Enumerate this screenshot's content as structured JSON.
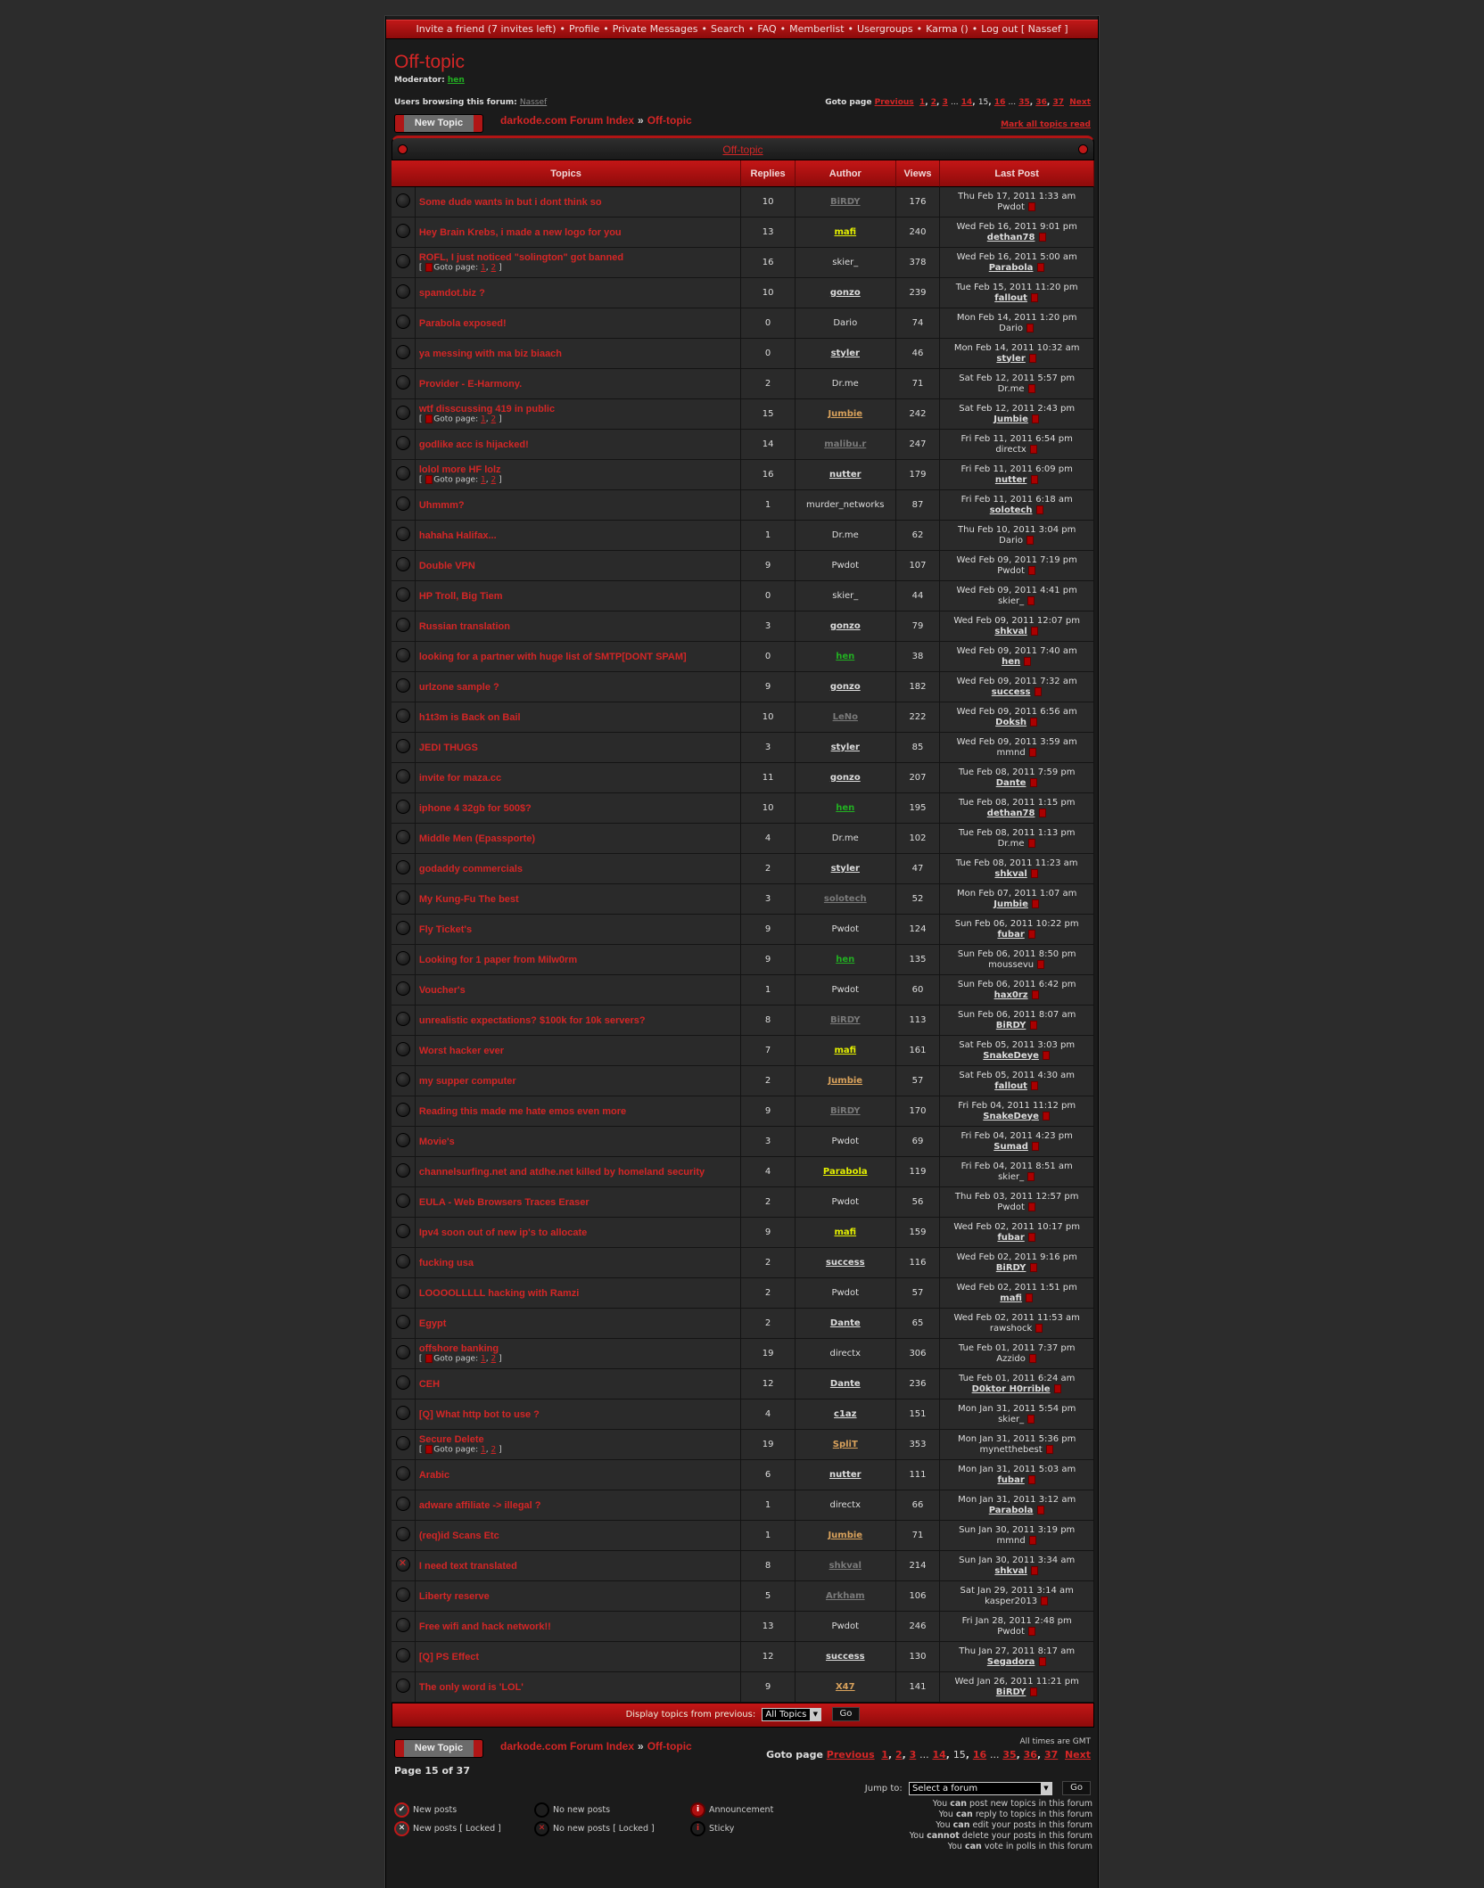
{
  "nav": {
    "items": [
      "Invite a friend (7 invites left)",
      "Profile",
      "Private Messages",
      "Search",
      "FAQ",
      "Memberlist",
      "Usergroups",
      "Karma ()",
      "Log out [ Nassef ]"
    ]
  },
  "forum_title": "Off-topic",
  "moderator": {
    "label": "Moderator:",
    "name": "hen"
  },
  "browsing": {
    "label": "Users browsing this forum:",
    "user": "Nassef"
  },
  "pagination": {
    "label": "Goto page",
    "previous": "Previous",
    "next": "Next",
    "pages": [
      "1",
      "2",
      "3",
      "...",
      "14",
      "15",
      "16",
      "...",
      "35",
      "36",
      "37"
    ],
    "current": "15"
  },
  "new_topic_label": "New Topic",
  "breadcrumb": {
    "index": "darkode.com Forum Index",
    "separator": "»",
    "current": "Off-topic"
  },
  "mark_read": "Mark all topics read",
  "category": "Off-topic",
  "columns": [
    "Topics",
    "Replies",
    "Author",
    "Views",
    "Last Post"
  ],
  "goto_pages": {
    "label": "Goto page:",
    "pages": [
      "1",
      "2"
    ]
  },
  "topics": [
    {
      "title": "Some dude wants in but i dont think so",
      "replies": 10,
      "author": "BiRDY",
      "author_style": "gray",
      "views": 176,
      "last_date": "Thu Feb 17, 2011 1:33 am",
      "last_user": "Pwdot",
      "last_style": "plain"
    },
    {
      "title": "Hey Brain Krebs, i made a new logo for you",
      "replies": 13,
      "author": "mafi",
      "author_style": "yellow",
      "views": 240,
      "last_date": "Wed Feb 16, 2011 9:01 pm",
      "last_user": "dethan78",
      "last_style": "link"
    },
    {
      "title": "ROFL, I just noticed \"solington\" got banned",
      "pages": true,
      "replies": 16,
      "author": "skier_",
      "author_style": "plain",
      "views": 378,
      "last_date": "Wed Feb 16, 2011 5:00 am",
      "last_user": "Parabola",
      "last_style": "link"
    },
    {
      "title": "spamdot.biz ?",
      "replies": 10,
      "author": "gonzo",
      "author_style": "link",
      "views": 239,
      "last_date": "Tue Feb 15, 2011 11:20 pm",
      "last_user": "fallout",
      "last_style": "link"
    },
    {
      "title": "Parabola exposed!",
      "replies": 0,
      "author": "Dario",
      "author_style": "plain",
      "views": 74,
      "last_date": "Mon Feb 14, 2011 1:20 pm",
      "last_user": "Dario",
      "last_style": "plain"
    },
    {
      "title": "ya messing with ma biz biaach",
      "replies": 0,
      "author": "styler",
      "author_style": "link",
      "views": 46,
      "last_date": "Mon Feb 14, 2011 10:32 am",
      "last_user": "styler",
      "last_style": "link"
    },
    {
      "title": "Provider - E-Harmony.",
      "replies": 2,
      "author": "Dr.me",
      "author_style": "plain",
      "views": 71,
      "last_date": "Sat Feb 12, 2011 5:57 pm",
      "last_user": "Dr.me",
      "last_style": "plain"
    },
    {
      "title": "wtf disscussing 419 in public",
      "pages": true,
      "replies": 15,
      "author": "Jumbie",
      "author_style": "orange",
      "views": 242,
      "last_date": "Sat Feb 12, 2011 2:43 pm",
      "last_user": "Jumbie",
      "last_style": "link"
    },
    {
      "title": "godlike acc is hijacked!",
      "replies": 14,
      "author": "malibu.r",
      "author_style": "gray",
      "views": 247,
      "last_date": "Fri Feb 11, 2011 6:54 pm",
      "last_user": "directx",
      "last_style": "plain"
    },
    {
      "title": "lolol more HF lolz",
      "pages": true,
      "replies": 16,
      "author": "nutter",
      "author_style": "link",
      "views": 179,
      "last_date": "Fri Feb 11, 2011 6:09 pm",
      "last_user": "nutter",
      "last_style": "link"
    },
    {
      "title": "Uhmmm?",
      "replies": 1,
      "author": "murder_networks",
      "author_style": "plain",
      "views": 87,
      "last_date": "Fri Feb 11, 2011 6:18 am",
      "last_user": "solotech",
      "last_style": "link"
    },
    {
      "title": "hahaha Halifax...",
      "replies": 1,
      "author": "Dr.me",
      "author_style": "plain",
      "views": 62,
      "last_date": "Thu Feb 10, 2011 3:04 pm",
      "last_user": "Dario",
      "last_style": "plain"
    },
    {
      "title": "Double VPN",
      "replies": 9,
      "author": "Pwdot",
      "author_style": "plain",
      "views": 107,
      "last_date": "Wed Feb 09, 2011 7:19 pm",
      "last_user": "Pwdot",
      "last_style": "plain"
    },
    {
      "title": "HP Troll, Big Tiem",
      "replies": 0,
      "author": "skier_",
      "author_style": "plain",
      "views": 44,
      "last_date": "Wed Feb 09, 2011 4:41 pm",
      "last_user": "skier_",
      "last_style": "plain"
    },
    {
      "title": "Russian translation",
      "replies": 3,
      "author": "gonzo",
      "author_style": "link",
      "views": 79,
      "last_date": "Wed Feb 09, 2011 12:07 pm",
      "last_user": "shkval",
      "last_style": "link"
    },
    {
      "title": "looking for a partner with huge list of SMTP[DONT SPAM]",
      "replies": 0,
      "author": "hen",
      "author_style": "green",
      "views": 38,
      "last_date": "Wed Feb 09, 2011 7:40 am",
      "last_user": "hen",
      "last_style": "link"
    },
    {
      "title": "urlzone sample ?",
      "replies": 9,
      "author": "gonzo",
      "author_style": "link",
      "views": 182,
      "last_date": "Wed Feb 09, 2011 7:32 am",
      "last_user": "success",
      "last_style": "link"
    },
    {
      "title": "h1t3m is Back on Bail",
      "replies": 10,
      "author": "LeNo",
      "author_style": "gray",
      "views": 222,
      "last_date": "Wed Feb 09, 2011 6:56 am",
      "last_user": "Doksh",
      "last_style": "link"
    },
    {
      "title": "JEDI THUGS",
      "replies": 3,
      "author": "styler",
      "author_style": "link",
      "views": 85,
      "last_date": "Wed Feb 09, 2011 3:59 am",
      "last_user": "mmnd",
      "last_style": "plain"
    },
    {
      "title": "invite for maza.cc",
      "replies": 11,
      "author": "gonzo",
      "author_style": "link",
      "views": 207,
      "last_date": "Tue Feb 08, 2011 7:59 pm",
      "last_user": "Dante",
      "last_style": "link"
    },
    {
      "title": "iphone 4 32gb for 500$?",
      "replies": 10,
      "author": "hen",
      "author_style": "green",
      "views": 195,
      "last_date": "Tue Feb 08, 2011 1:15 pm",
      "last_user": "dethan78",
      "last_style": "link"
    },
    {
      "title": "Middle Men (Epassporte)",
      "replies": 4,
      "author": "Dr.me",
      "author_style": "plain",
      "views": 102,
      "last_date": "Tue Feb 08, 2011 1:13 pm",
      "last_user": "Dr.me",
      "last_style": "plain"
    },
    {
      "title": "godaddy commercials",
      "replies": 2,
      "author": "styler",
      "author_style": "link",
      "views": 47,
      "last_date": "Tue Feb 08, 2011 11:23 am",
      "last_user": "shkval",
      "last_style": "link"
    },
    {
      "title": "My Kung-Fu The best",
      "replies": 3,
      "author": "solotech",
      "author_style": "gray",
      "views": 52,
      "last_date": "Mon Feb 07, 2011 1:07 am",
      "last_user": "Jumbie",
      "last_style": "link"
    },
    {
      "title": "Fly Ticket's",
      "replies": 9,
      "author": "Pwdot",
      "author_style": "plain",
      "views": 124,
      "last_date": "Sun Feb 06, 2011 10:22 pm",
      "last_user": "fubar",
      "last_style": "link"
    },
    {
      "title": "Looking for 1 paper from Milw0rm",
      "replies": 9,
      "author": "hen",
      "author_style": "green",
      "views": 135,
      "last_date": "Sun Feb 06, 2011 8:50 pm",
      "last_user": "moussevu",
      "last_style": "plain"
    },
    {
      "title": "Voucher's",
      "replies": 1,
      "author": "Pwdot",
      "author_style": "plain",
      "views": 60,
      "last_date": "Sun Feb 06, 2011 6:42 pm",
      "last_user": "hax0rz",
      "last_style": "link"
    },
    {
      "title": "unrealistic expectations? $100k for 10k servers?",
      "replies": 8,
      "author": "BiRDY",
      "author_style": "gray",
      "views": 113,
      "last_date": "Sun Feb 06, 2011 8:07 am",
      "last_user": "BiRDY",
      "last_style": "link"
    },
    {
      "title": "Worst hacker ever",
      "replies": 7,
      "author": "mafi",
      "author_style": "yellow",
      "views": 161,
      "last_date": "Sat Feb 05, 2011 3:03 pm",
      "last_user": "SnakeDeye",
      "last_style": "link"
    },
    {
      "title": "my supper computer",
      "replies": 2,
      "author": "Jumbie",
      "author_style": "orange",
      "views": 57,
      "last_date": "Sat Feb 05, 2011 4:30 am",
      "last_user": "fallout",
      "last_style": "link"
    },
    {
      "title": "Reading this made me hate emos even more",
      "replies": 9,
      "author": "BiRDY",
      "author_style": "gray",
      "views": 170,
      "last_date": "Fri Feb 04, 2011 11:12 pm",
      "last_user": "SnakeDeye",
      "last_style": "link"
    },
    {
      "title": "Movie's",
      "replies": 3,
      "author": "Pwdot",
      "author_style": "plain",
      "views": 69,
      "last_date": "Fri Feb 04, 2011 4:23 pm",
      "last_user": "Sumad",
      "last_style": "link"
    },
    {
      "title": "channelsurfing.net and atdhe.net killed by homeland security",
      "replies": 4,
      "author": "Parabola",
      "author_style": "yellow",
      "views": 119,
      "last_date": "Fri Feb 04, 2011 8:51 am",
      "last_user": "skier_",
      "last_style": "plain"
    },
    {
      "title": "EULA - Web Browsers Traces Eraser",
      "replies": 2,
      "author": "Pwdot",
      "author_style": "plain",
      "views": 56,
      "last_date": "Thu Feb 03, 2011 12:57 pm",
      "last_user": "Pwdot",
      "last_style": "plain"
    },
    {
      "title": "Ipv4 soon out of new ip's to allocate",
      "replies": 9,
      "author": "mafi",
      "author_style": "yellow",
      "views": 159,
      "last_date": "Wed Feb 02, 2011 10:17 pm",
      "last_user": "fubar",
      "last_style": "link"
    },
    {
      "title": "fucking usa",
      "replies": 2,
      "author": "success",
      "author_style": "link",
      "views": 116,
      "last_date": "Wed Feb 02, 2011 9:16 pm",
      "last_user": "BiRDY",
      "last_style": "link"
    },
    {
      "title": "LOOOOLLLLL hacking with Ramzi",
      "replies": 2,
      "author": "Pwdot",
      "author_style": "plain",
      "views": 57,
      "last_date": "Wed Feb 02, 2011 1:51 pm",
      "last_user": "mafi",
      "last_style": "link"
    },
    {
      "title": "Egypt",
      "replies": 2,
      "author": "Dante",
      "author_style": "link",
      "views": 65,
      "last_date": "Wed Feb 02, 2011 11:53 am",
      "last_user": "rawshock",
      "last_style": "plain"
    },
    {
      "title": "offshore banking",
      "pages": true,
      "replies": 19,
      "author": "directx",
      "author_style": "plain",
      "views": 306,
      "last_date": "Tue Feb 01, 2011 7:37 pm",
      "last_user": "Azzido",
      "last_style": "plain"
    },
    {
      "title": "CEH",
      "replies": 12,
      "author": "Dante",
      "author_style": "link",
      "views": 236,
      "last_date": "Tue Feb 01, 2011 6:24 am",
      "last_user": "D0ktor H0rrible",
      "last_style": "link"
    },
    {
      "title": "[Q] What http bot to use ?",
      "replies": 4,
      "author": "c1az",
      "author_style": "link",
      "views": 151,
      "last_date": "Mon Jan 31, 2011 5:54 pm",
      "last_user": "skier_",
      "last_style": "plain"
    },
    {
      "title": "Secure Delete",
      "pages": true,
      "replies": 19,
      "author": "SpliT",
      "author_style": "orange",
      "views": 353,
      "last_date": "Mon Jan 31, 2011 5:36 pm",
      "last_user": "mynetthebest",
      "last_style": "plain"
    },
    {
      "title": "Arabic",
      "replies": 6,
      "author": "nutter",
      "author_style": "link",
      "views": 111,
      "last_date": "Mon Jan 31, 2011 5:03 am",
      "last_user": "fubar",
      "last_style": "link"
    },
    {
      "title": "adware affiliate -> illegal ?",
      "replies": 1,
      "author": "directx",
      "author_style": "plain",
      "views": 66,
      "last_date": "Mon Jan 31, 2011 3:12 am",
      "last_user": "Parabola",
      "last_style": "link"
    },
    {
      "title": "(req)id Scans Etc",
      "replies": 1,
      "author": "Jumbie",
      "author_style": "orange",
      "views": 71,
      "last_date": "Sun Jan 30, 2011 3:19 pm",
      "last_user": "mmnd",
      "last_style": "plain"
    },
    {
      "title": "I need text translated",
      "locked": true,
      "replies": 8,
      "author": "shkval",
      "author_style": "gray",
      "views": 214,
      "last_date": "Sun Jan 30, 2011 3:34 am",
      "last_user": "shkval",
      "last_style": "link"
    },
    {
      "title": "Liberty reserve",
      "replies": 5,
      "author": "Arkham",
      "author_style": "gray",
      "views": 106,
      "last_date": "Sat Jan 29, 2011 3:14 am",
      "last_user": "kasper2013",
      "last_style": "plain"
    },
    {
      "title": "Free wifi and hack network!!",
      "replies": 13,
      "author": "Pwdot",
      "author_style": "plain",
      "views": 246,
      "last_date": "Fri Jan 28, 2011 2:48 pm",
      "last_user": "Pwdot",
      "last_style": "plain"
    },
    {
      "title": "[Q] PS Effect",
      "replies": 12,
      "author": "success",
      "author_style": "link",
      "views": 130,
      "last_date": "Thu Jan 27, 2011 8:17 am",
      "last_user": "Segadora",
      "last_style": "link"
    },
    {
      "title": "The only word is 'LOL'",
      "replies": 9,
      "author": "X47",
      "author_style": "orange",
      "views": 141,
      "last_date": "Wed Jan 26, 2011 11:21 pm",
      "last_user": "BiRDY",
      "last_style": "link"
    }
  ],
  "display_filter": {
    "label": "Display topics from previous:",
    "value": "All Topics",
    "go": "Go"
  },
  "all_times": "All times are GMT",
  "page_of": "Page 15 of 37",
  "jump": {
    "label": "Jump to:",
    "value": "Select a forum",
    "go": "Go"
  },
  "legend": [
    {
      "icon": "new-posts-icon",
      "label": "New posts"
    },
    {
      "icon": "no-new-posts-icon",
      "label": "No new posts"
    },
    {
      "icon": "announcement-icon",
      "label": "Announcement"
    },
    {
      "icon": "new-posts-locked-icon",
      "label": "New posts [ Locked ]"
    },
    {
      "icon": "no-new-posts-locked-icon",
      "label": "No new posts [ Locked ]"
    },
    {
      "icon": "sticky-icon",
      "label": "Sticky"
    }
  ],
  "permissions": [
    {
      "pre": "You",
      "verb": "can",
      "post": "post new topics in this forum"
    },
    {
      "pre": "You",
      "verb": "can",
      "post": "reply to topics in this forum"
    },
    {
      "pre": "You",
      "verb": "can",
      "post": "edit your posts in this forum"
    },
    {
      "pre": "You",
      "verb": "cannot",
      "post": "delete your posts in this forum"
    },
    {
      "pre": "You",
      "verb": "can",
      "post": "vote in polls in this forum"
    }
  ],
  "colors": {
    "accent": "#d42626",
    "header_red": "#c41616",
    "moderator_green": "#22b022",
    "vip_yellow": "#e4f000",
    "member_orange": "#d9a25c",
    "inactive_gray": "#7a7a7a"
  }
}
